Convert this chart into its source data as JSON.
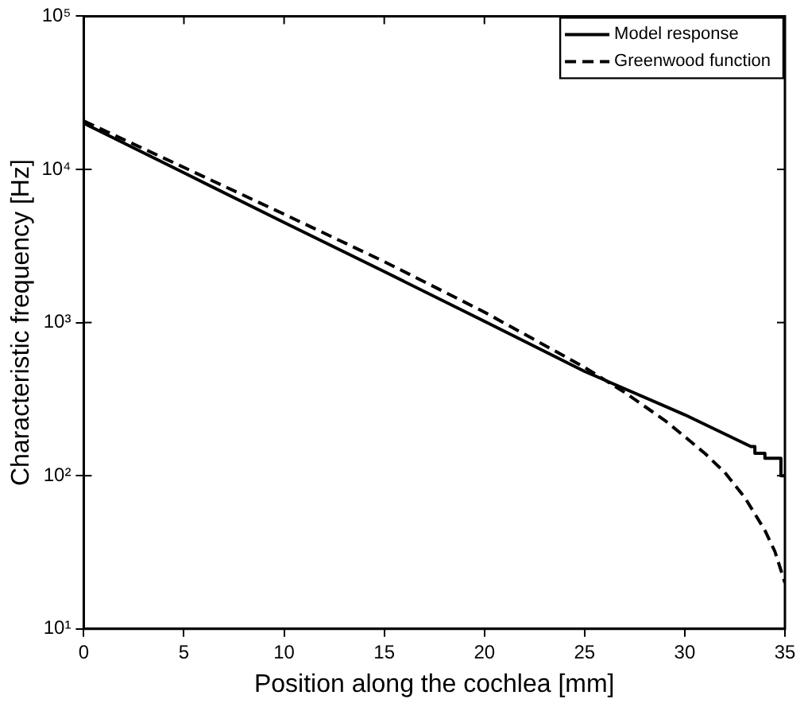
{
  "chart_data": {
    "type": "line",
    "xlabel": "Position along the cochlea [mm]",
    "ylabel": "Characteristic frequency [Hz]",
    "xlim": [
      0,
      35
    ],
    "xticks": [
      0,
      5,
      10,
      15,
      20,
      25,
      30,
      35
    ],
    "ylim": [
      10,
      100000
    ],
    "yticks": [
      {
        "value": 10,
        "label": "10¹"
      },
      {
        "value": 100,
        "label": "10²"
      },
      {
        "value": 1000,
        "label": "10³"
      },
      {
        "value": 10000,
        "label": "10⁴"
      },
      {
        "value": 100000,
        "label": "10⁵"
      }
    ],
    "log": "y",
    "grid": false,
    "legend": "top right",
    "marker": "none",
    "series": [
      {
        "name": "Model response",
        "color": "#000000",
        "line_style": "solid",
        "x": [
          0,
          5,
          10,
          15,
          20,
          25,
          30,
          33.3,
          33.5,
          33.5,
          34,
          34,
          34.8,
          34.8,
          35
        ],
        "values": [
          20000,
          9500,
          4500,
          2150,
          1020,
          480,
          250,
          155,
          155,
          140,
          140,
          130,
          130,
          100,
          100
        ]
      },
      {
        "name": "Greenwood function",
        "color": "#000000",
        "line_style": "dashed",
        "x": [
          0,
          5,
          10,
          15,
          20,
          25,
          27,
          29,
          30,
          31,
          32,
          33,
          34,
          34.5,
          35
        ],
        "values": [
          20700,
          10300,
          5100,
          2500,
          1170,
          510,
          350,
          230,
          180,
          140,
          105,
          72,
          44,
          32,
          20
        ]
      }
    ]
  }
}
